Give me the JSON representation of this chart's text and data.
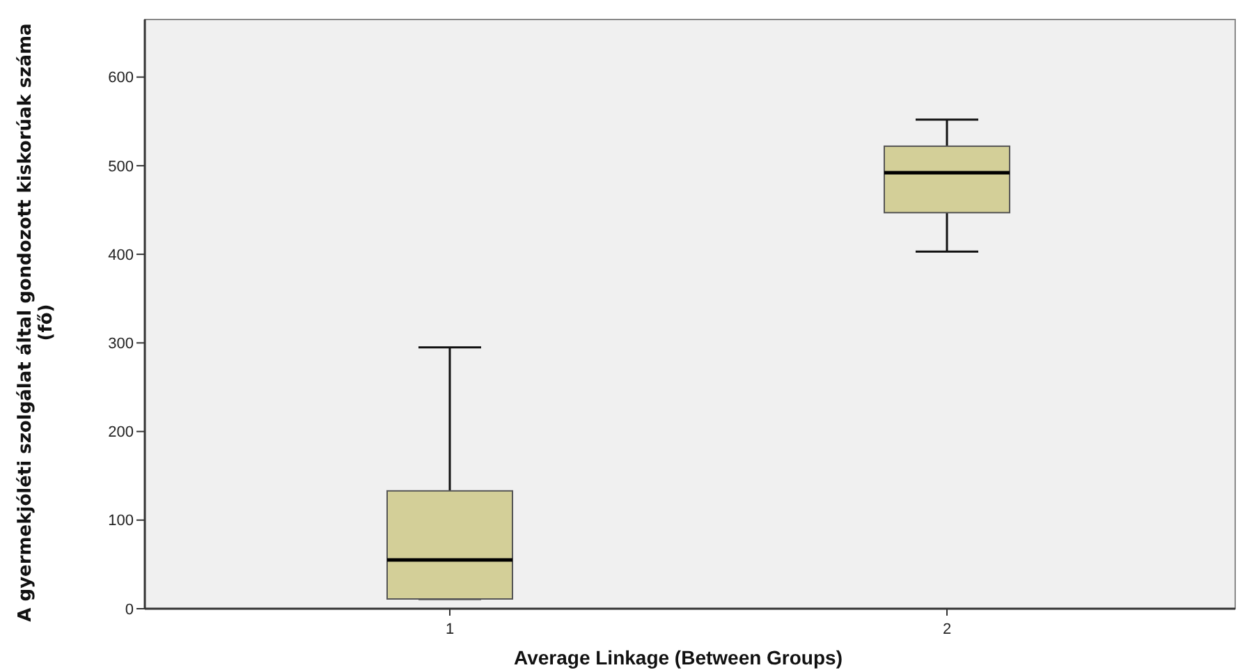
{
  "chart_data": {
    "type": "box",
    "xlabel": "Average Linkage (Between Groups)",
    "ylabel": "A gyermekjóléti szolgálat által gondozott kiskorúak száma\n(fő)",
    "categories": [
      "1",
      "2"
    ],
    "color": "#d3cf98",
    "ylim": [
      0,
      665
    ],
    "yticks": [
      0,
      100,
      200,
      300,
      400,
      500,
      600
    ],
    "grid": false,
    "boxes": [
      {
        "low": 11,
        "q1": 11,
        "median": 55,
        "q3": 133,
        "high": 295
      },
      {
        "low": 403,
        "q1": 447,
        "median": 492,
        "q3": 522,
        "high": 552
      }
    ]
  }
}
